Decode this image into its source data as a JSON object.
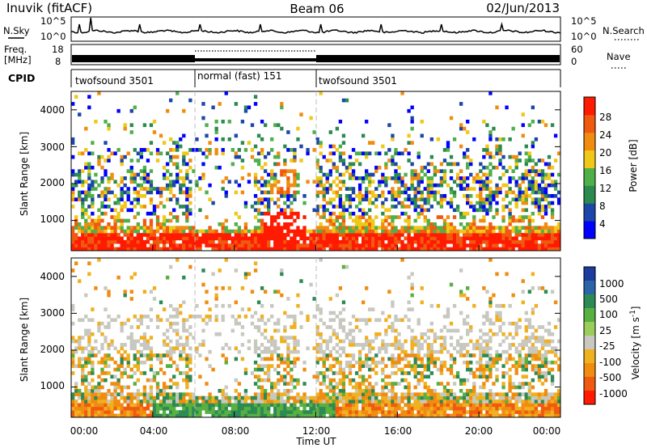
{
  "header": {
    "station": "Inuvik (fitACF)",
    "beam": "Beam 06",
    "date": "02/Jun/2013"
  },
  "nsky_panel": {
    "left_label": "N.Sky",
    "right_label": "N.Search",
    "left_ticks": [
      "10^5",
      "10^0"
    ],
    "right_ticks": [
      "10^5",
      "10^0"
    ]
  },
  "freq_panel": {
    "left_label_line1": "Freq.",
    "left_label_line2": "[MHz]",
    "right_label": "Nave",
    "left_ticks": [
      "18",
      "8"
    ],
    "right_ticks": [
      "60",
      "0"
    ]
  },
  "cpid_panel": {
    "label": "CPID",
    "segments": [
      {
        "name": "twofsound 3501",
        "start_hour": 0,
        "end_hour": 6
      },
      {
        "name": "normal (fast) 151",
        "start_hour": 6,
        "end_hour": 12
      },
      {
        "name": "twofsound 3501",
        "start_hour": 12,
        "end_hour": 24
      }
    ]
  },
  "x_axis": {
    "label": "Time UT",
    "tick_labels": [
      "00:00",
      "04:00",
      "08:00",
      "12:00",
      "16:00",
      "20:00",
      "00:00"
    ]
  },
  "power_panel": {
    "ylabel": "Slant Range [km]",
    "y_ticks": [
      "1000",
      "2000",
      "3000",
      "4000"
    ],
    "colorbar_label": "Power [dB]",
    "colorbar_ticks": [
      "4",
      "8",
      "12",
      "16",
      "20",
      "24",
      "28"
    ],
    "colors": [
      "#0000ff",
      "#1c47a8",
      "#2c8a4e",
      "#4fb04a",
      "#f0c818",
      "#f08c10",
      "#f05a10",
      "#ff1a00"
    ]
  },
  "velocity_panel": {
    "ylabel": "Slant Range [km]",
    "y_ticks": [
      "1000",
      "2000",
      "3000",
      "4000"
    ],
    "colorbar_label": "Velocity [m s",
    "colorbar_label_sup": "-1",
    "colorbar_label_end": "]",
    "colorbar_ticks": [
      "1000",
      "500",
      "100",
      "25",
      "-25",
      "-100",
      "-500",
      "-1000"
    ],
    "colors": [
      "#1c3ca0",
      "#2c64a8",
      "#2c8a54",
      "#58b040",
      "#9acd5a",
      "#c8c8c0",
      "#f0b020",
      "#f08c10",
      "#f05a10",
      "#ff1a00"
    ]
  },
  "chart_data": {
    "type": "heatmap",
    "title": "Inuvik (fitACF)   Beam 06   02/Jun/2013",
    "xlabel": "Time UT",
    "ylabel": "Slant Range [km]",
    "x_range_hours": [
      0,
      24
    ],
    "y_range_km": [
      180,
      4500
    ],
    "panels": [
      {
        "name": "Power [dB]",
        "scale": [
          0,
          30
        ]
      },
      {
        "name": "Velocity [m s-1]",
        "scale": [
          -1000,
          1000
        ]
      }
    ],
    "grid": false,
    "dashed_vertical_lines_hours": [
      6,
      12
    ]
  }
}
